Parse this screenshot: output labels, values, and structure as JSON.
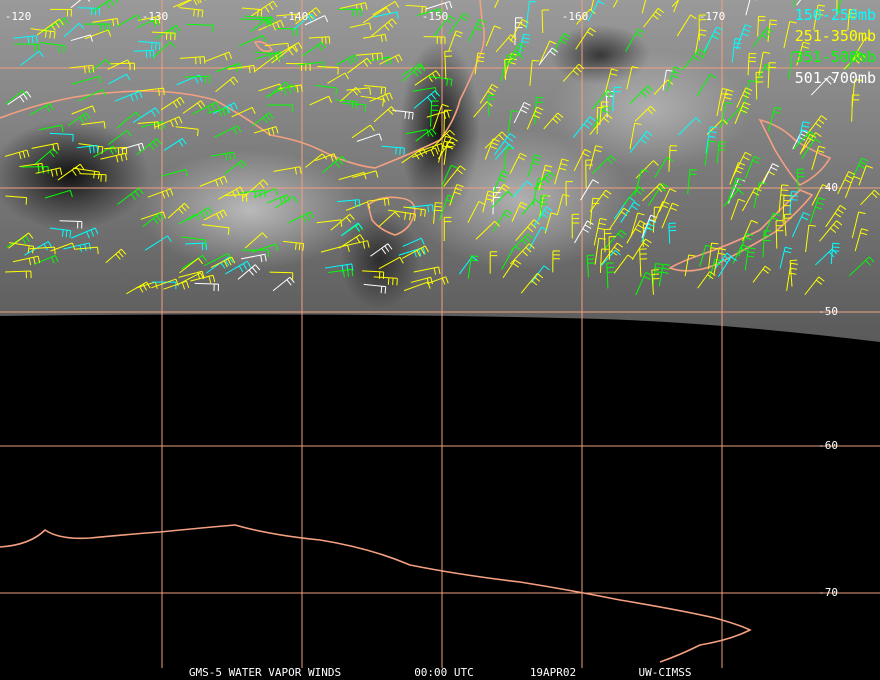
{
  "longitude_labels": [
    "-120",
    "-130",
    "-140",
    "-150",
    "-160",
    "-170"
  ],
  "latitude_labels": [
    "-40",
    "-50",
    "-60",
    "-70"
  ],
  "legend": [
    {
      "label": "150-250mb",
      "color": "#00ffff"
    },
    {
      "label": "251-350mb",
      "color": "#ffff00"
    },
    {
      "label": "351-500mb",
      "color": "#00ff00"
    },
    {
      "label": "501-700mb",
      "color": "#ffffff"
    }
  ],
  "footer": [
    "GMS-5 WATER VAPOR WINDS",
    "00:00 UTC",
    "19APR02",
    "UW-CIMSS"
  ]
}
